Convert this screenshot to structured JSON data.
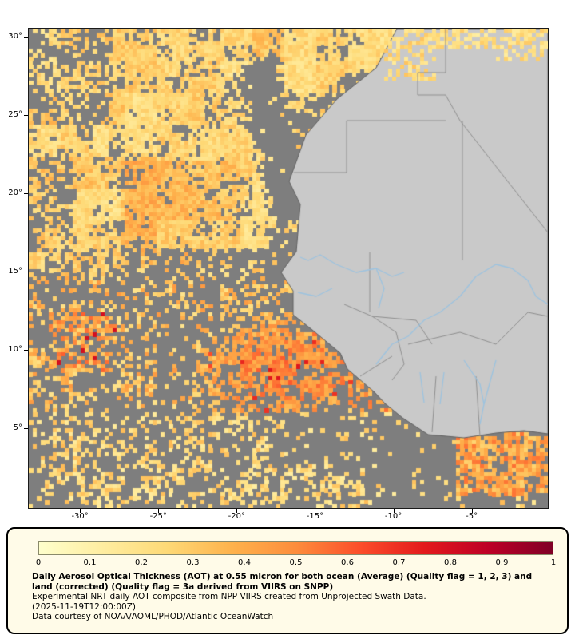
{
  "map": {
    "frame_color": "#1a1a1a",
    "ocean_nodata_color": "#7e7e7e",
    "land_color": "#c9c9c9",
    "coast_color": "#616161",
    "country_border_color": "#8f8f8f",
    "river_color": "#9cc3e0",
    "lat_ticks": [
      {
        "label": "30°",
        "deg": 30
      },
      {
        "label": "25°",
        "deg": 25
      },
      {
        "label": "20°",
        "deg": 20
      },
      {
        "label": "15°",
        "deg": 15
      },
      {
        "label": "10°",
        "deg": 10
      },
      {
        "label": "5°",
        "deg": 5
      }
    ],
    "lon_ticks": [
      {
        "label": "-30°",
        "deg": -30
      },
      {
        "label": "-25°",
        "deg": -25
      },
      {
        "label": "-20°",
        "deg": -20
      },
      {
        "label": "-15°",
        "deg": -15
      },
      {
        "label": "-10°",
        "deg": -10
      },
      {
        "label": "-5°",
        "deg": -5
      }
    ]
  },
  "legend": {
    "background": "#fffbe8",
    "tick_labels": [
      "0",
      "0.1",
      "0.2",
      "0.3",
      "0.4",
      "0.5",
      "0.6",
      "0.7",
      "0.8",
      "0.9",
      "1"
    ],
    "title_bold": "Daily Aerosol Optical Thickness (AOT) at 0.55 micron for both ocean (Average) (Quality flag = 1, 2, 3) and land (corrected) (Quality flag = 3a derived from VIIRS on SNPP)",
    "note": "Experimental NRT daily AOT composite from NPP VIIRS created from Unprojected Swath Data.",
    "timestamp": "(2025-11-19T12:00:00Z)",
    "credit": "Data courtesy of NOAA/AOML/PHOD/Atlantic OceanWatch",
    "colormap": [
      {
        "v": 0.0,
        "c": "#ffffcc"
      },
      {
        "v": 0.125,
        "c": "#ffeda0"
      },
      {
        "v": 0.25,
        "c": "#fed976"
      },
      {
        "v": 0.375,
        "c": "#feb24c"
      },
      {
        "v": 0.5,
        "c": "#fd8d3c"
      },
      {
        "v": 0.625,
        "c": "#fc4e2a"
      },
      {
        "v": 0.75,
        "c": "#e31a1c"
      },
      {
        "v": 0.875,
        "c": "#bd0026"
      },
      {
        "v": 1.0,
        "c": "#800026"
      }
    ]
  }
}
